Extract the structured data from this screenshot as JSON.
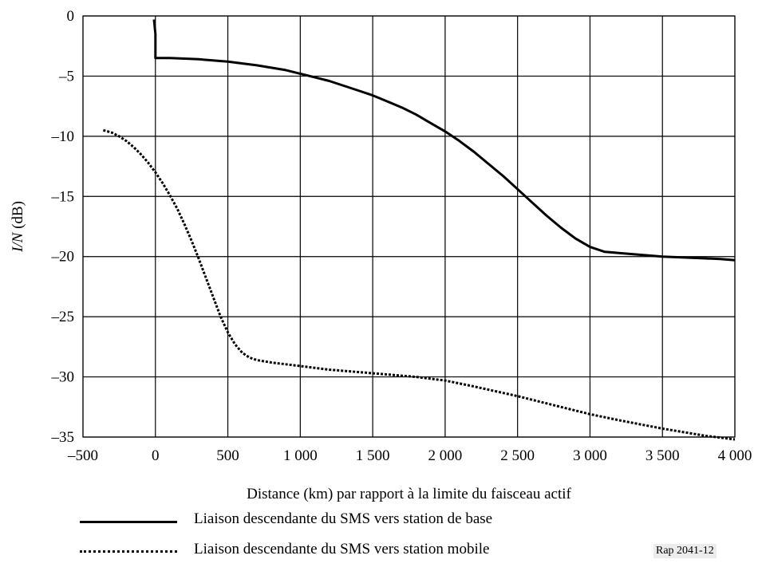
{
  "chart_data": {
    "type": "line",
    "ylabel": "I/N (dB)",
    "ylabel_italic_part": "I/N",
    "ylabel_unit_part": " (dB)",
    "xlabel": "Distance (km) par rapport à la limite du faisceau actif",
    "xlim": [
      -500,
      4000
    ],
    "ylim": [
      -35,
      0
    ],
    "grid": true,
    "xticks": [
      -500,
      0,
      500,
      1000,
      1500,
      2000,
      2500,
      3000,
      3500,
      4000
    ],
    "xtick_labels": [
      "–500",
      "0",
      "500",
      "1 000",
      "1 500",
      "2 000",
      "2 500",
      "3 000",
      "3 500",
      "4 000"
    ],
    "yticks": [
      0,
      -5,
      -10,
      -15,
      -20,
      -25,
      -30,
      -35
    ],
    "ytick_labels": [
      "0",
      "–5",
      "–10",
      "–15",
      "–20",
      "–25",
      "–30",
      "–35"
    ],
    "legend_position": "bottom",
    "series": [
      {
        "name": "Liaison descendante du SMS vers station de base",
        "style": "solid",
        "color": "#000000",
        "x": [
          -10,
          0,
          0,
          100,
          300,
          500,
          700,
          900,
          1000,
          1100,
          1200,
          1300,
          1400,
          1500,
          1600,
          1700,
          1800,
          1900,
          2000,
          2100,
          2200,
          2300,
          2400,
          2500,
          2600,
          2700,
          2800,
          2900,
          3000,
          3100,
          3200,
          3300,
          3400,
          3500,
          3600,
          3700,
          3800,
          3900,
          4000
        ],
        "y": [
          -0.3,
          -1.5,
          -3.5,
          -3.5,
          -3.6,
          -3.8,
          -4.1,
          -4.5,
          -4.8,
          -5.1,
          -5.4,
          -5.8,
          -6.2,
          -6.6,
          -7.1,
          -7.6,
          -8.2,
          -8.9,
          -9.6,
          -10.4,
          -11.3,
          -12.3,
          -13.3,
          -14.4,
          -15.5,
          -16.6,
          -17.6,
          -18.5,
          -19.2,
          -19.6,
          -19.7,
          -19.8,
          -19.9,
          -20.0,
          -20.05,
          -20.1,
          -20.15,
          -20.2,
          -20.3
        ]
      },
      {
        "name": "Liaison descendante du SMS vers station mobile",
        "style": "dotted",
        "color": "#000000",
        "x": [
          -360,
          -300,
          -250,
          -200,
          -150,
          -100,
          -50,
          0,
          50,
          100,
          150,
          200,
          250,
          300,
          350,
          400,
          450,
          500,
          550,
          600,
          650,
          700,
          800,
          1000,
          1200,
          1500,
          1800,
          2000,
          2200,
          2500,
          2800,
          3000,
          3200,
          3500,
          3800,
          4000
        ],
        "y": [
          -9.5,
          -9.7,
          -10.0,
          -10.4,
          -10.9,
          -11.5,
          -12.2,
          -13.0,
          -13.9,
          -14.9,
          -16.0,
          -17.3,
          -18.7,
          -20.2,
          -21.8,
          -23.4,
          -25.0,
          -26.3,
          -27.3,
          -28.0,
          -28.4,
          -28.6,
          -28.8,
          -29.1,
          -29.4,
          -29.7,
          -30.0,
          -30.3,
          -30.8,
          -31.6,
          -32.5,
          -33.1,
          -33.6,
          -34.3,
          -34.9,
          -35.2
        ]
      }
    ]
  },
  "figure_ref": "Rap 2041-12"
}
